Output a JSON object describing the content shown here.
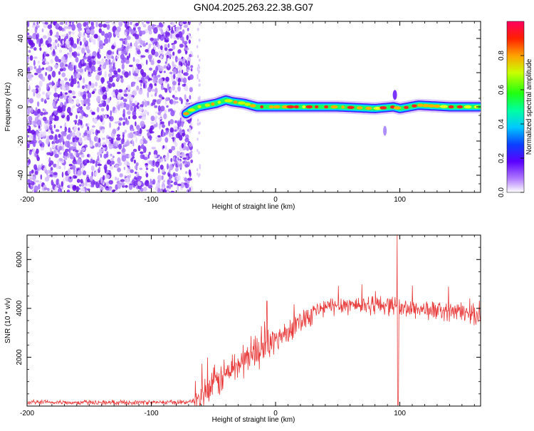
{
  "page": {
    "title": "GN04.2025.263.22.38.G07"
  },
  "chart_data": [
    {
      "type": "heatmap",
      "name": "spectrogram",
      "xlabel": "Height of straight line (km)",
      "ylabel": "Frequency (Hz)",
      "xlim": [
        -200,
        165
      ],
      "ylim": [
        -50,
        50
      ],
      "xticks": [
        -200,
        -100,
        0,
        100
      ],
      "xtick_labels": [
        "-200",
        "-100",
        "0",
        "100"
      ],
      "yticks": [
        -40,
        -20,
        0,
        20,
        40
      ],
      "ytick_labels": [
        "-40",
        "-20",
        "0",
        "20",
        "40"
      ],
      "noise_region_x": [
        -200,
        -72
      ],
      "signal_line_frequency_hz": [
        [
          -72,
          -4
        ],
        [
          -68,
          -2
        ],
        [
          -62,
          0
        ],
        [
          -55,
          1
        ],
        [
          -48,
          2
        ],
        [
          -44,
          3
        ],
        [
          -40,
          4
        ],
        [
          -35,
          3
        ],
        [
          -25,
          2
        ],
        [
          -15,
          0
        ],
        [
          0,
          0
        ],
        [
          20,
          0
        ],
        [
          50,
          0
        ],
        [
          80,
          -1
        ],
        [
          95,
          0
        ],
        [
          100,
          -1
        ],
        [
          115,
          1
        ],
        [
          140,
          0
        ],
        [
          165,
          0
        ]
      ],
      "colorbar": {
        "label": "Normalized spectral amplitude",
        "range": [
          0.0,
          1.0
        ],
        "ticks": [
          0.0,
          0.2,
          0.4,
          0.6,
          0.8
        ],
        "tick_labels": [
          "0.0",
          "0.2",
          "0.4",
          "0.6",
          "0.8"
        ]
      }
    },
    {
      "type": "line",
      "name": "snr",
      "xlabel": "Height of straight line (km)",
      "ylabel": "SNR (10 * v/v)",
      "xlim": [
        -200,
        165
      ],
      "ylim": [
        0,
        7000
      ],
      "xticks": [
        -200,
        -100,
        0,
        100
      ],
      "xtick_labels": [
        "-200",
        "-100",
        "0",
        "100"
      ],
      "yticks": [
        2000,
        4000,
        6000
      ],
      "ytick_labels": [
        "2000",
        "4000",
        "6000"
      ],
      "color": "#e83a3a",
      "series": [
        {
          "name": "SNR",
          "x": [
            -200,
            -150,
            -100,
            -70,
            -62,
            -55,
            -45,
            -35,
            -25,
            -15,
            -5,
            0,
            5,
            15,
            25,
            35,
            50,
            70,
            90,
            96,
            98,
            100,
            110,
            130,
            150,
            165
          ],
          "y": [
            150,
            150,
            150,
            160,
            300,
            600,
            1100,
            1500,
            1900,
            2300,
            2500,
            2700,
            2900,
            3300,
            3700,
            3950,
            4150,
            4150,
            4150,
            4100,
            4000,
            4000,
            4000,
            3900,
            3850,
            3700
          ]
        }
      ],
      "spikes": [
        {
          "x": -7,
          "y": 4300
        },
        {
          "x": 98,
          "y": 7000
        },
        {
          "x": 98.5,
          "y": 50
        }
      ]
    }
  ]
}
